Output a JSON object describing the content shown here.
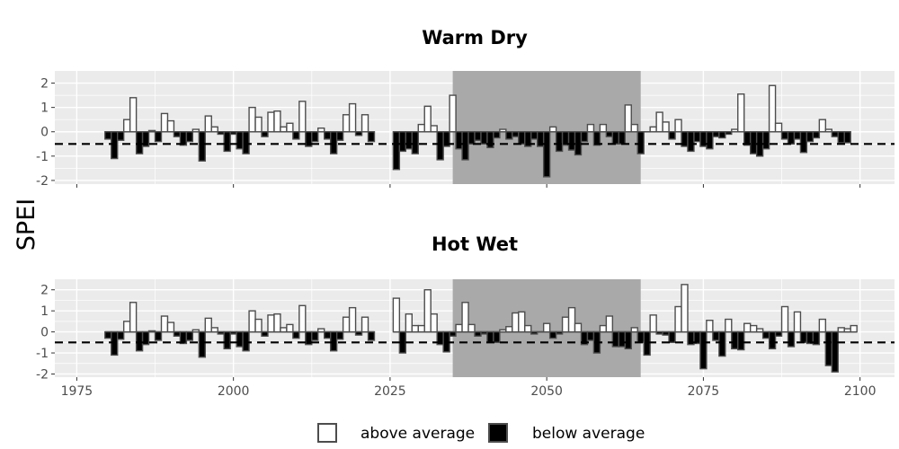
{
  "y_axis_title": "SPEI",
  "legend": {
    "above_label": "above average",
    "below_label": "below average"
  },
  "colors": {
    "panel_background": "#ebebeb",
    "grid": "#ffffff",
    "shaded_period": "#a9a9a9",
    "above_fill": "#ffffff",
    "below_fill": "#000000",
    "bar_outline": "#4d4d4d",
    "zero_line": "#4d4d4d"
  },
  "chart_data": [
    {
      "type": "bar",
      "title": "Warm Dry",
      "xlabel": "",
      "ylabel": "SPEI",
      "xlim": [
        1971.5,
        2105.5
      ],
      "ylim": [
        -2.15,
        2.5
      ],
      "x_ticks": [
        1975,
        2000,
        2025,
        2050,
        2075,
        2100
      ],
      "x_tick_labels_shown": false,
      "y_ticks": [
        -2,
        -1,
        0,
        1,
        2
      ],
      "grid": true,
      "threshold_line": -0.5,
      "shaded_period": [
        2035,
        2065
      ],
      "legend_position": "bottom",
      "segments": [
        {
          "start_year": 1980,
          "values": [
            -0.3,
            -1.1,
            -0.35,
            0.5,
            1.4,
            -0.9,
            -0.6,
            0.05,
            -0.4,
            0.75,
            0.45,
            -0.2,
            -0.55,
            -0.4,
            0.1,
            -1.2,
            0.65,
            0.2,
            -0.1,
            -0.8,
            -0.1,
            -0.7,
            -0.9,
            1.0,
            0.6,
            -0.2,
            0.8,
            0.85,
            0.2,
            0.35,
            -0.3,
            1.25,
            -0.6,
            -0.4,
            0.15,
            -0.3,
            -0.9,
            -0.35,
            0.7,
            1.15,
            -0.15,
            0.7,
            -0.4
          ]
        },
        {
          "start_year": 2026,
          "values": [
            -1.55,
            -0.8,
            -0.7,
            -0.9,
            0.3,
            1.05,
            0.25,
            -1.15,
            -0.6,
            1.5,
            -0.7,
            -1.15,
            -0.5,
            -0.35,
            -0.5,
            -0.65,
            -0.25,
            0.1,
            -0.3,
            -0.2,
            -0.5,
            -0.6,
            -0.3,
            -0.6,
            -1.85,
            0.2,
            -0.8,
            -0.55,
            -0.75,
            -0.95,
            -0.4,
            0.3,
            -0.55,
            0.3,
            -0.2,
            -0.5,
            -0.5,
            1.1,
            0.3,
            -0.9,
            0.0,
            0.2,
            0.8,
            0.4,
            -0.3,
            0.5,
            -0.6,
            -0.8,
            -0.4,
            -0.6,
            -0.7,
            -0.2,
            -0.25,
            -0.1,
            0.1,
            1.55,
            -0.55,
            -0.9,
            -1.0,
            -0.7,
            1.9,
            0.35,
            -0.3,
            -0.5,
            -0.3,
            -0.85,
            -0.4,
            -0.25,
            0.5,
            0.1,
            -0.2,
            -0.45,
            -0.45
          ]
        }
      ]
    },
    {
      "type": "bar",
      "title": "Hot Wet",
      "xlabel": "",
      "ylabel": "SPEI",
      "xlim": [
        1971.5,
        2105.5
      ],
      "ylim": [
        -2.15,
        2.5
      ],
      "x_ticks": [
        1975,
        2000,
        2025,
        2050,
        2075,
        2100
      ],
      "x_tick_labels_shown": true,
      "y_ticks": [
        -2,
        -1,
        0,
        1,
        2
      ],
      "grid": true,
      "threshold_line": -0.5,
      "shaded_period": [
        2035,
        2065
      ],
      "legend_position": "bottom",
      "segments": [
        {
          "start_year": 1980,
          "values": [
            -0.3,
            -1.1,
            -0.35,
            0.5,
            1.4,
            -0.9,
            -0.6,
            0.05,
            -0.4,
            0.75,
            0.45,
            -0.2,
            -0.55,
            -0.4,
            0.1,
            -1.2,
            0.65,
            0.2,
            -0.1,
            -0.8,
            -0.1,
            -0.7,
            -0.9,
            1.0,
            0.6,
            -0.2,
            0.8,
            0.85,
            0.2,
            0.35,
            -0.3,
            1.25,
            -0.6,
            -0.4,
            0.15,
            -0.3,
            -0.9,
            -0.35,
            0.7,
            1.15,
            -0.15,
            0.7,
            -0.4
          ]
        },
        {
          "start_year": 2026,
          "values": [
            1.6,
            -1.0,
            0.85,
            0.3,
            0.3,
            2.0,
            0.85,
            -0.6,
            -0.95,
            -0.2,
            0.35,
            1.4,
            0.35,
            -0.2,
            -0.1,
            -0.5,
            -0.5,
            0.1,
            0.25,
            0.9,
            0.95,
            0.3,
            -0.1,
            0.0,
            0.4,
            -0.3,
            -0.1,
            0.7,
            1.15,
            0.4,
            -0.6,
            -0.4,
            -1.0,
            0.3,
            0.75,
            -0.7,
            -0.7,
            -0.8,
            0.2,
            -0.5,
            -1.1,
            0.8,
            -0.1,
            -0.15,
            -0.5,
            1.2,
            2.25,
            -0.6,
            -0.55,
            -1.75,
            0.55,
            -0.4,
            -1.15,
            0.6,
            -0.8,
            -0.85,
            0.4,
            0.3,
            0.15,
            -0.3,
            -0.8,
            -0.2,
            1.2,
            -0.7,
            0.95,
            -0.5,
            -0.55,
            -0.6,
            0.6,
            -1.6,
            -1.9,
            0.2,
            0.15,
            0.3
          ]
        }
      ]
    }
  ]
}
